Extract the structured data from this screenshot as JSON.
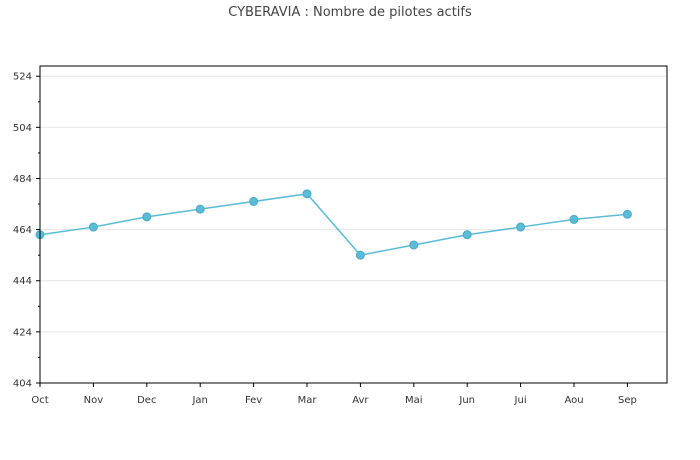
{
  "chart_data": {
    "type": "line",
    "title": "CYBERAVIA : Nombre de pilotes actifs",
    "xlabel": "",
    "ylabel": "",
    "categories": [
      "Oct",
      "Nov",
      "Dec",
      "Jan",
      "Fev",
      "Mar",
      "Avr",
      "Mai",
      "Jun",
      "Jui",
      "Aou",
      "Sep"
    ],
    "series": [
      {
        "values": [
          462,
          465,
          469,
          472,
          475,
          478,
          454,
          458,
          462,
          465,
          468,
          470
        ]
      }
    ],
    "ylim": [
      404,
      528
    ],
    "yticks": [
      "404",
      "424",
      "444",
      "464",
      "484",
      "504",
      "524"
    ],
    "grid": true,
    "legend": "none",
    "colors": {
      "line": "#5bbcd8",
      "marker": "#5bbcd8",
      "grid": "#e6e6e6",
      "axis": "#000000"
    }
  }
}
